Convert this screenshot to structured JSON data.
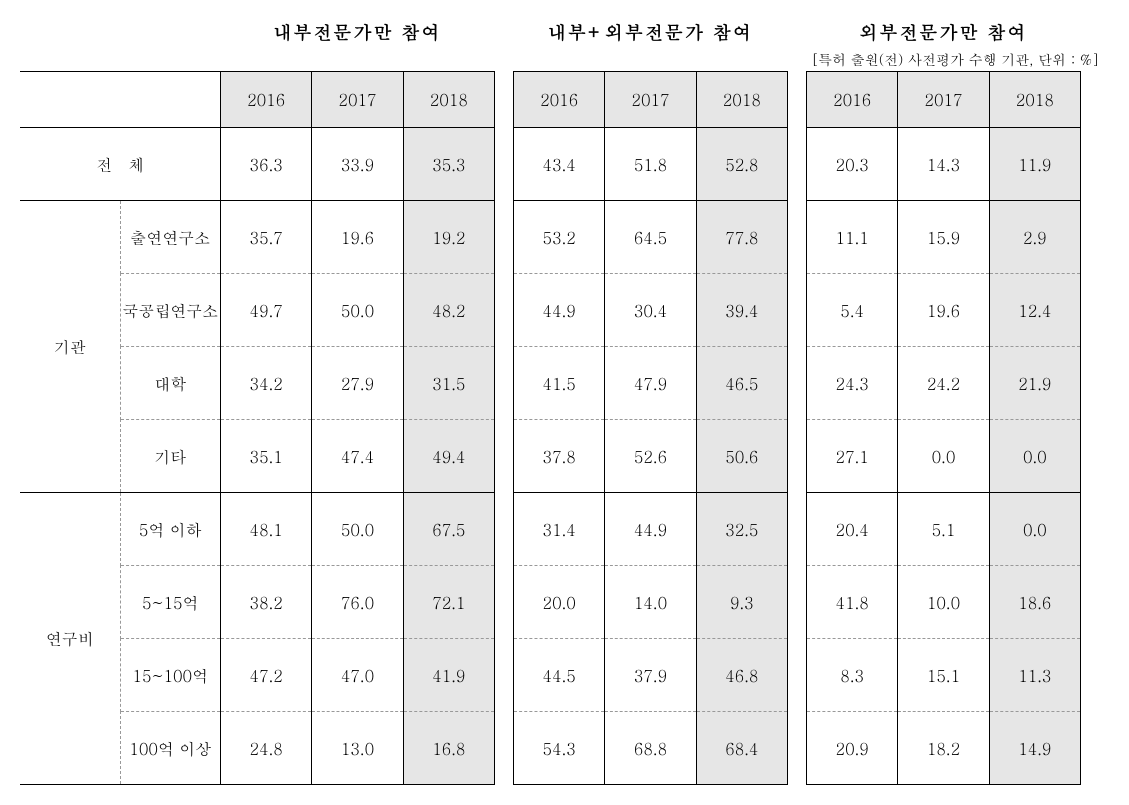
{
  "headers": {
    "section1": "내부전문가만 참여",
    "section2": "내부+외부전문가 참여",
    "section3": "외부전문가만 참여"
  },
  "unit_note": "[특허 출원(전) 사전평가 수행 기관, 단위 : %]",
  "years": [
    "2016",
    "2017",
    "2018"
  ],
  "labels": {
    "total": "전체",
    "group1": "기관",
    "group1_subs": [
      "출연연구소",
      "국공립연구소",
      "대학",
      "기타"
    ],
    "group2": "연구비",
    "group2_subs": [
      "5억 이하",
      "5~15억",
      "15~100억",
      "100억 이상"
    ]
  },
  "data": {
    "total": {
      "s1": [
        "36.3",
        "33.9",
        "35.3"
      ],
      "s2": [
        "43.4",
        "51.8",
        "52.8"
      ],
      "s3": [
        "20.3",
        "14.3",
        "11.9"
      ]
    },
    "group1": [
      {
        "s1": [
          "35.7",
          "19.6",
          "19.2"
        ],
        "s2": [
          "53.2",
          "64.5",
          "77.8"
        ],
        "s3": [
          "11.1",
          "15.9",
          "2.9"
        ]
      },
      {
        "s1": [
          "49.7",
          "50.0",
          "48.2"
        ],
        "s2": [
          "44.9",
          "30.4",
          "39.4"
        ],
        "s3": [
          "5.4",
          "19.6",
          "12.4"
        ]
      },
      {
        "s1": [
          "34.2",
          "27.9",
          "31.5"
        ],
        "s2": [
          "41.5",
          "47.9",
          "46.5"
        ],
        "s3": [
          "24.3",
          "24.2",
          "21.9"
        ]
      },
      {
        "s1": [
          "35.1",
          "47.4",
          "49.4"
        ],
        "s2": [
          "37.8",
          "52.6",
          "50.6"
        ],
        "s3": [
          "27.1",
          "0.0",
          "0.0"
        ]
      }
    ],
    "group2": [
      {
        "s1": [
          "48.1",
          "50.0",
          "67.5"
        ],
        "s2": [
          "31.4",
          "44.9",
          "32.5"
        ],
        "s3": [
          "20.4",
          "5.1",
          "0.0"
        ]
      },
      {
        "s1": [
          "38.2",
          "76.0",
          "72.1"
        ],
        "s2": [
          "20.0",
          "14.0",
          "9.3"
        ],
        "s3": [
          "41.8",
          "10.0",
          "18.6"
        ]
      },
      {
        "s1": [
          "47.2",
          "47.0",
          "41.9"
        ],
        "s2": [
          "44.5",
          "37.9",
          "46.8"
        ],
        "s3": [
          "8.3",
          "15.1",
          "11.3"
        ]
      },
      {
        "s1": [
          "24.8",
          "13.0",
          "16.8"
        ],
        "s2": [
          "54.3",
          "68.8",
          "68.4"
        ],
        "s3": [
          "20.9",
          "18.2",
          "14.9"
        ]
      }
    ]
  },
  "styling": {
    "header_bg": "#e6e6e6",
    "highlight_bg": "#e6e6e6",
    "border_color": "#000000",
    "dashed_color": "#999999",
    "font_family": "serif",
    "header_fontsize": 18,
    "cell_fontsize": 16
  }
}
